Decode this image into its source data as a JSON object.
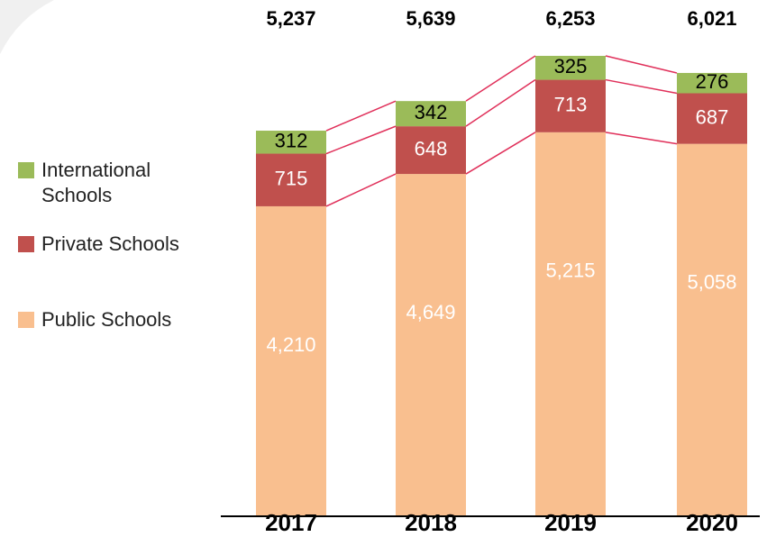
{
  "chart_data": {
    "type": "stacked_bar",
    "categories": [
      "2017",
      "2018",
      "2019",
      "2020"
    ],
    "series": [
      {
        "name": "Public Schools",
        "color": "#f9bf8f",
        "values": [
          4210,
          4649,
          5215,
          5058
        ],
        "value_labels": [
          "4,210",
          "4,649",
          "5,215",
          "5,058"
        ]
      },
      {
        "name": "Private Schools",
        "color": "#c0504d",
        "values": [
          715,
          648,
          713,
          687
        ]
      },
      {
        "name": "International Schools",
        "color": "#9bbb59",
        "values": [
          312,
          342,
          325,
          276
        ]
      }
    ],
    "totals": [
      5237,
      5639,
      6253,
      6021
    ],
    "totals_labels": [
      "5,237",
      "5,639",
      "6,253",
      "6,021"
    ]
  }
}
